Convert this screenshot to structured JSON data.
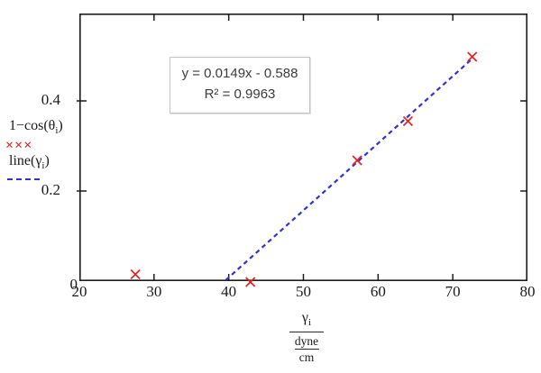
{
  "chart_data": {
    "type": "scatter",
    "x_axis": {
      "min": 20,
      "max": 80,
      "ticks": [
        20,
        30,
        40,
        50,
        60,
        70,
        80
      ],
      "tick_labels": [
        "20",
        "30",
        "40",
        "50",
        "60",
        "70",
        "80"
      ],
      "inner_ticks": [
        30,
        40,
        50,
        60,
        70
      ]
    },
    "y_axis": {
      "min": 0,
      "max": 0.594,
      "ticks": [
        0,
        0.2,
        0.4
      ],
      "tick_labels": [
        "0",
        "0.2",
        "0.4"
      ],
      "inner_ticks": [
        0.2,
        0.4
      ]
    },
    "grid": false,
    "series": [
      {
        "name": "1-cos(theta_i)",
        "type": "scatter",
        "marker": "x",
        "color": "#e02421",
        "points": [
          [
            27.5,
            0.015
          ],
          [
            42.9,
            -0.002
          ],
          [
            57.2,
            0.268
          ],
          [
            64.0,
            0.355
          ],
          [
            72.6,
            0.498
          ]
        ]
      },
      {
        "name": "line(gamma_i)",
        "type": "line",
        "style": "dashed",
        "color": "#3232cd",
        "slope": 0.0149,
        "intercept": -0.588,
        "x_start": 39.6,
        "x_end": 72.6
      }
    ],
    "annotation": {
      "equation": "y = 0.0149x - 0.588",
      "r_squared": "R² = 0.9963"
    },
    "legend": {
      "position": "left",
      "series1": {
        "pre": "1−cos(θ",
        "sub": "i",
        "post": ")",
        "marker_glyphs": "×××"
      },
      "series2": {
        "pre": "line(γ",
        "sub": "i",
        "post": ")"
      }
    },
    "xlabel_parts": {
      "symbol": "γ",
      "subscript": "i",
      "unit_numerator": "dyne",
      "unit_denominator": "cm"
    },
    "ylabel": ""
  },
  "colors": {
    "marker": "#e02421",
    "trendline": "#3232cd",
    "axis": "#1c1c1c",
    "text": "#1a1a1a",
    "annotation_border": "#c4c4c4",
    "annotation_text": "#3b3b3b"
  }
}
